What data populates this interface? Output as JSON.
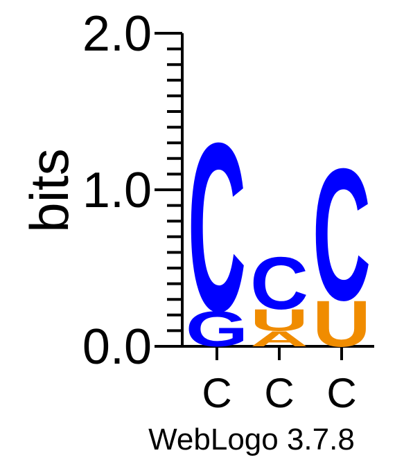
{
  "chart_data": {
    "type": "sequence-logo",
    "ylabel": "bits",
    "ylim": [
      0,
      2
    ],
    "yticks": [
      "0.0",
      "1.0",
      "2.0"
    ],
    "positions": [
      {
        "label": "C",
        "letters": [
          {
            "letter": "G",
            "bits": 0.23,
            "color": "#0000ff"
          },
          {
            "letter": "C",
            "bits": 1.1,
            "color": "#0000ff"
          }
        ]
      },
      {
        "label": "C",
        "letters": [
          {
            "letter": "A",
            "bits": 0.1,
            "color": "#f08c00"
          },
          {
            "letter": "U",
            "bits": 0.14,
            "color": "#f08c00"
          },
          {
            "letter": "C",
            "bits": 0.34,
            "color": "#0000ff"
          }
        ]
      },
      {
        "label": "C",
        "letters": [
          {
            "letter": "U",
            "bits": 0.3,
            "color": "#f08c00"
          },
          {
            "letter": "C",
            "bits": 0.86,
            "color": "#0000ff"
          }
        ]
      }
    ]
  },
  "footer": {
    "credit": "WebLogo 3.7.8"
  }
}
